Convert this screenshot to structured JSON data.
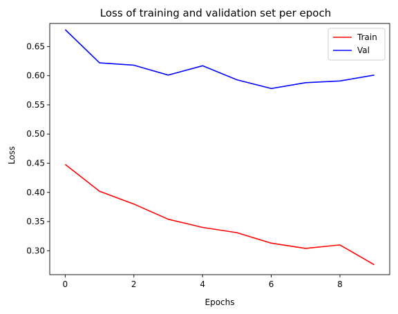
{
  "chart_data": {
    "type": "line",
    "title": "Loss of training and validation set per epoch",
    "xlabel": "Epochs",
    "ylabel": "Loss",
    "xlim": [
      -0.45,
      9.45
    ],
    "ylim": [
      0.259,
      0.6895
    ],
    "xticks": [
      0,
      2,
      4,
      6,
      8
    ],
    "yticks": [
      0.3,
      0.35,
      0.4,
      0.45,
      0.5,
      0.55,
      0.6,
      0.65
    ],
    "x": [
      0,
      1,
      2,
      3,
      4,
      5,
      6,
      7,
      8,
      9
    ],
    "series": [
      {
        "name": "Train",
        "color": "#ff0000",
        "values": [
          0.448,
          0.402,
          0.38,
          0.354,
          0.34,
          0.331,
          0.313,
          0.304,
          0.31,
          0.276
        ]
      },
      {
        "name": "Val",
        "color": "#0000ff",
        "values": [
          0.679,
          0.622,
          0.618,
          0.601,
          0.617,
          0.593,
          0.578,
          0.588,
          0.591,
          0.601
        ]
      }
    ],
    "legend": "top-right",
    "grid": false
  }
}
